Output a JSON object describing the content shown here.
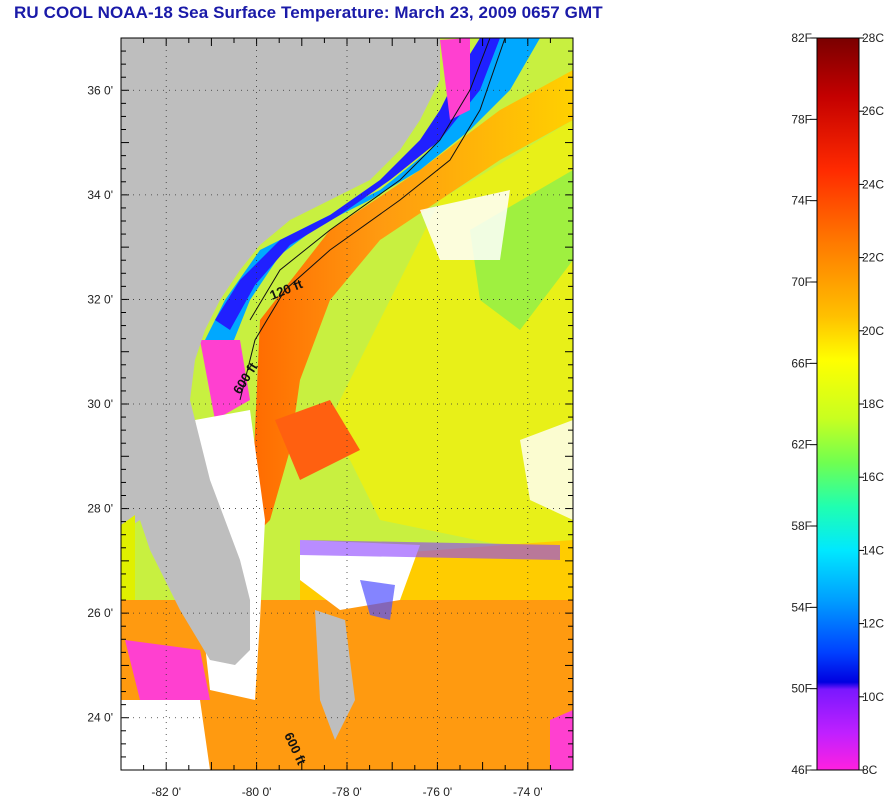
{
  "title": "RU COOL  NOAA-18  Sea Surface Temperature:  March 23, 2009 0657 GMT",
  "map": {
    "lon_range": [
      -83,
      -73
    ],
    "lat_range": [
      23,
      37
    ],
    "lat_labels": [
      {
        "lat": 36,
        "text": "36 0'"
      },
      {
        "lat": 34,
        "text": "34 0'"
      },
      {
        "lat": 32,
        "text": "32 0'"
      },
      {
        "lat": 30,
        "text": "30 0'"
      },
      {
        "lat": 28,
        "text": "28 0'"
      },
      {
        "lat": 26,
        "text": "26 0'"
      },
      {
        "lat": 24,
        "text": "24 0'"
      }
    ],
    "lon_labels": [
      {
        "lon": -82,
        "text": "-82 0'"
      },
      {
        "lon": -80,
        "text": "-80 0'"
      },
      {
        "lon": -78,
        "text": "-78 0'"
      },
      {
        "lon": -76,
        "text": "-76 0'"
      },
      {
        "lon": -74,
        "text": "-74 0'"
      }
    ],
    "depth_labels": [
      "120 ft",
      "600 ft",
      "600 ft"
    ],
    "land_color": "#bebebe",
    "cloud_color": "#ffffff"
  },
  "colorbar": {
    "fahrenheit_labels": [
      "82F",
      "78F",
      "74F",
      "70F",
      "66F",
      "62F",
      "58F",
      "54F",
      "50F",
      "46F"
    ],
    "celsius_labels": [
      "28C",
      "26C",
      "24C",
      "22C",
      "20C",
      "18C",
      "16C",
      "14C",
      "12C",
      "10C",
      "8C"
    ],
    "range_f": [
      46,
      82
    ],
    "range_c": [
      8,
      28
    ]
  }
}
